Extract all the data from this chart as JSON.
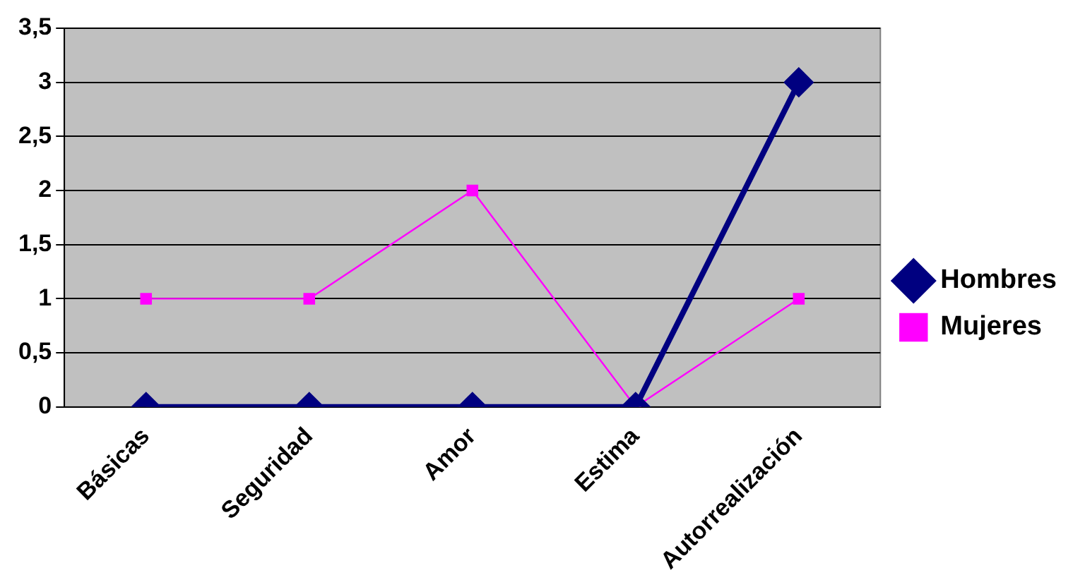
{
  "chart_data": {
    "type": "line",
    "categories": [
      "Básicas",
      "Seguridad",
      "Amor",
      "Estima",
      "Autorrealización"
    ],
    "series": [
      {
        "name": "Hombres",
        "color": "#000080",
        "values": [
          0,
          0,
          0,
          0,
          3
        ],
        "marker": "diamond"
      },
      {
        "name": "Mujeres",
        "color": "#ff00ff",
        "values": [
          1,
          1,
          2,
          0,
          1
        ],
        "marker": "square"
      }
    ],
    "ylim": [
      0,
      3.5
    ],
    "yticks": [
      0,
      {
        "value": 0.5,
        "label": "0,5"
      },
      1,
      {
        "value": 1.5,
        "label": "1,5"
      },
      2,
      {
        "value": 2.5,
        "label": "2,5"
      },
      3,
      {
        "value": 3.5,
        "label": "3,5"
      }
    ],
    "grid": "y",
    "legend": "right",
    "line_style": "solid"
  }
}
